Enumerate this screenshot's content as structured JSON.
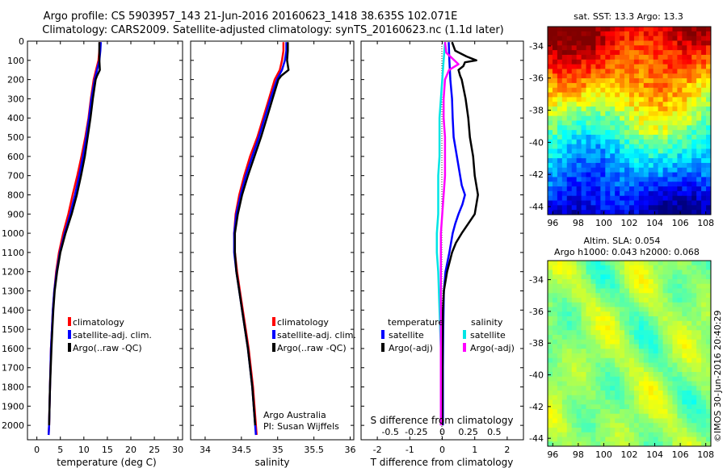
{
  "header": {
    "line1": "Argo profile: CS 5903957_143 21-Jun-2016 20160623_1418 38.635S 102.071E",
    "line2": "Climatology: CARS2009. Satellite-adjusted climatology: synTS_20160623.nc (1.1d later)"
  },
  "colors": {
    "climatology": "#ff0000",
    "satellite": "#0000ff",
    "argo": "#000000",
    "satellite_s": "#00e5e5",
    "argo_s": "#ff00ff"
  },
  "chart_data": [
    {
      "type": "line",
      "id": "temperature",
      "xlabel": "temperature (deg C)",
      "ylabel": "",
      "xlim": [
        -2,
        31
      ],
      "ylim": [
        2075,
        0
      ],
      "xticks": [
        0,
        5,
        10,
        15,
        20,
        25,
        30
      ],
      "yticks": [
        0,
        100,
        200,
        300,
        400,
        500,
        600,
        700,
        800,
        900,
        1000,
        1100,
        1200,
        1300,
        1400,
        1500,
        1600,
        1700,
        1800,
        1900,
        2000
      ],
      "legend": [
        "climatology",
        "satellite-adj. clim.",
        "Argo(..raw -QC)"
      ],
      "series": [
        {
          "name": "climatology",
          "color": "#ff0000",
          "depth": [
            5,
            50,
            100,
            150,
            200,
            300,
            400,
            500,
            600,
            700,
            800,
            900,
            1000,
            1100,
            1200,
            1300,
            1400,
            1500,
            1600,
            1800,
            2000,
            2050
          ],
          "values": [
            13.4,
            13.3,
            13.1,
            12.6,
            12.1,
            11.5,
            11.0,
            10.3,
            9.5,
            8.6,
            7.6,
            6.7,
            5.6,
            4.7,
            4.1,
            3.7,
            3.4,
            3.2,
            3.0,
            2.8,
            2.6,
            2.5
          ]
        },
        {
          "name": "satellite-adj. clim.",
          "color": "#0000ff",
          "depth": [
            5,
            50,
            100,
            150,
            200,
            300,
            400,
            500,
            600,
            700,
            800,
            900,
            1000,
            1100,
            1200,
            1300,
            1400,
            1500,
            1600,
            1800,
            2000,
            2050
          ],
          "values": [
            13.6,
            13.5,
            13.3,
            12.8,
            12.3,
            11.6,
            11.1,
            10.5,
            9.8,
            9.0,
            8.1,
            7.1,
            5.9,
            4.9,
            4.2,
            3.7,
            3.4,
            3.2,
            3.0,
            2.8,
            2.6,
            2.5
          ]
        },
        {
          "name": "Argo(..raw -QC)",
          "color": "#000000",
          "depth": [
            5,
            50,
            100,
            150,
            180,
            200,
            300,
            400,
            500,
            600,
            700,
            800,
            900,
            1000,
            1100,
            1200,
            1300,
            1400,
            1500,
            1600,
            1800,
            2000
          ],
          "values": [
            13.3,
            13.3,
            13.3,
            13.4,
            12.8,
            12.5,
            11.9,
            11.4,
            10.8,
            10.2,
            9.4,
            8.5,
            7.4,
            6.1,
            5.0,
            4.3,
            3.8,
            3.5,
            3.3,
            3.1,
            2.8,
            2.6
          ]
        }
      ]
    },
    {
      "type": "line",
      "id": "salinity",
      "xlabel": "salinity",
      "ylabel": "",
      "xlim": [
        33.8,
        36.05
      ],
      "ylim": [
        2075,
        0
      ],
      "xticks": [
        34,
        34.5,
        35,
        35.5,
        36
      ],
      "xticklabels": [
        "34",
        "34.5",
        "35",
        "35.5",
        "36"
      ],
      "legend": [
        "climatology",
        "satellite-adj. clim.",
        "Argo(..raw -QC)"
      ],
      "annotation": [
        "Argo Australia",
        "PI: Susan Wijffels"
      ],
      "series": [
        {
          "name": "climatology",
          "color": "#ff0000",
          "depth": [
            5,
            50,
            100,
            150,
            200,
            300,
            400,
            500,
            600,
            700,
            800,
            900,
            1000,
            1100,
            1200,
            1300,
            1400,
            1500,
            1600,
            1800,
            2000,
            2050
          ],
          "values": [
            35.08,
            35.08,
            35.06,
            35.03,
            34.96,
            34.88,
            34.8,
            34.72,
            34.62,
            34.54,
            34.47,
            34.42,
            34.4,
            34.41,
            34.44,
            34.48,
            34.52,
            34.56,
            34.6,
            34.66,
            34.7,
            34.71
          ]
        },
        {
          "name": "satellite-adj. clim.",
          "color": "#0000ff",
          "depth": [
            5,
            50,
            100,
            150,
            200,
            300,
            400,
            500,
            600,
            700,
            800,
            900,
            1000,
            1100,
            1200,
            1300,
            1400,
            1500,
            1600,
            1800,
            2000,
            2050
          ],
          "values": [
            35.12,
            35.12,
            35.1,
            35.06,
            34.99,
            34.9,
            34.82,
            34.74,
            34.65,
            34.56,
            34.49,
            34.43,
            34.4,
            34.4,
            34.43,
            34.47,
            34.51,
            34.55,
            34.59,
            34.65,
            34.69,
            34.7
          ]
        },
        {
          "name": "Argo(..raw -QC)",
          "color": "#000000",
          "depth": [
            5,
            50,
            100,
            150,
            180,
            200,
            300,
            400,
            500,
            600,
            700,
            800,
            900,
            1000,
            1100,
            1200,
            1300,
            1400,
            1500,
            1600,
            1800,
            2000
          ],
          "values": [
            35.14,
            35.14,
            35.13,
            35.15,
            35.05,
            35.01,
            34.93,
            34.85,
            34.77,
            34.68,
            34.59,
            34.51,
            34.45,
            34.41,
            34.41,
            34.43,
            34.47,
            34.51,
            34.55,
            34.59,
            34.65,
            34.69
          ]
        }
      ]
    },
    {
      "type": "line",
      "id": "difference",
      "xlabel": "T difference from climatology",
      "xlabel2": "S difference from climatology",
      "xlim": [
        -2.5,
        2.5
      ],
      "ylim": [
        2075,
        0
      ],
      "xticks": [
        -2,
        -1,
        0,
        1,
        2
      ],
      "xticks2": [
        -0.5,
        -0.25,
        0,
        0.25,
        0.5
      ],
      "xticklabels2": [
        "-0.5",
        "-0.25",
        "0",
        "0.25",
        "0.5"
      ],
      "legend_t_title": "temperature",
      "legend_s_title": "salinity",
      "legend": [
        "satellite",
        "Argo(-adj)",
        "satellite",
        "Argo(-adj)"
      ],
      "series": [
        {
          "name": "satellite",
          "color": "#0000ff",
          "depth": [
            5,
            100,
            200,
            300,
            400,
            500,
            600,
            700,
            750,
            800,
            850,
            900,
            950,
            1000,
            1100,
            1200,
            1300,
            1400,
            1500,
            1700,
            2000
          ],
          "values": [
            0.2,
            0.22,
            0.25,
            0.3,
            0.32,
            0.35,
            0.45,
            0.55,
            0.6,
            0.7,
            0.62,
            0.5,
            0.4,
            0.32,
            0.22,
            0.1,
            0.05,
            0.04,
            0.03,
            0.02,
            0.02
          ]
        },
        {
          "name": "Argo(-adj)",
          "color": "#000000",
          "depth": [
            5,
            50,
            80,
            100,
            110,
            130,
            150,
            180,
            200,
            300,
            400,
            500,
            600,
            700,
            750,
            800,
            850,
            900,
            950,
            1000,
            1050,
            1100,
            1200,
            1300,
            1400,
            1600,
            2000
          ],
          "values": [
            0.3,
            0.4,
            0.75,
            1.05,
            0.7,
            0.65,
            0.5,
            0.55,
            0.6,
            0.72,
            0.8,
            0.85,
            0.95,
            1.0,
            1.05,
            1.1,
            1.05,
            1.0,
            0.8,
            0.6,
            0.42,
            0.3,
            0.15,
            0.05,
            0.02,
            0.01,
            0.0
          ]
        },
        {
          "name": "satellite",
          "color": "#00e5e5",
          "depth": [
            5,
            100,
            200,
            300,
            400,
            500,
            600,
            700,
            800,
            900,
            1000,
            1100,
            1200,
            1400,
            1600,
            2000
          ],
          "values": [
            0.02,
            0.01,
            0.0,
            -0.01,
            -0.02,
            -0.02,
            -0.02,
            -0.03,
            -0.03,
            -0.03,
            -0.04,
            -0.04,
            -0.03,
            -0.02,
            -0.01,
            -0.01
          ]
        },
        {
          "name": "Argo(-adj)",
          "color": "#ff00ff",
          "depth": [
            5,
            60,
            120,
            150,
            200,
            300,
            400,
            500,
            600,
            700,
            800,
            900,
            1000,
            1100,
            1200,
            1400,
            1600,
            2000
          ],
          "values": [
            0.02,
            0.03,
            0.12,
            0.05,
            0.02,
            0.01,
            0.01,
            0.02,
            0.02,
            0.02,
            0.01,
            0.0,
            -0.01,
            -0.01,
            -0.01,
            -0.01,
            -0.01,
            -0.01
          ]
        }
      ]
    },
    {
      "type": "heatmap",
      "id": "sst_map",
      "title": "sat. SST: 13.3 Argo: 13.3",
      "xlim": [
        95.6,
        108.4
      ],
      "ylim": [
        -44.5,
        -32.8
      ],
      "xticks": [
        96,
        98,
        100,
        102,
        104,
        106,
        108
      ],
      "yticks": [
        -34,
        -36,
        -38,
        -40,
        -42,
        -44
      ]
    },
    {
      "type": "heatmap",
      "id": "sla_map",
      "title": "Altim. SLA: 0.054",
      "subtitle": "Argo h1000: 0.043 h2000: 0.068",
      "xlim": [
        95.6,
        108.4
      ],
      "ylim": [
        -44.5,
        -32.8
      ],
      "xticks": [
        96,
        98,
        100,
        102,
        104,
        106,
        108
      ],
      "yticks": [
        -34,
        -36,
        -38,
        -40,
        -42,
        -44
      ]
    }
  ],
  "footer": {
    "credit": "©IMOS 30-Jun-2016 20:40:29"
  }
}
